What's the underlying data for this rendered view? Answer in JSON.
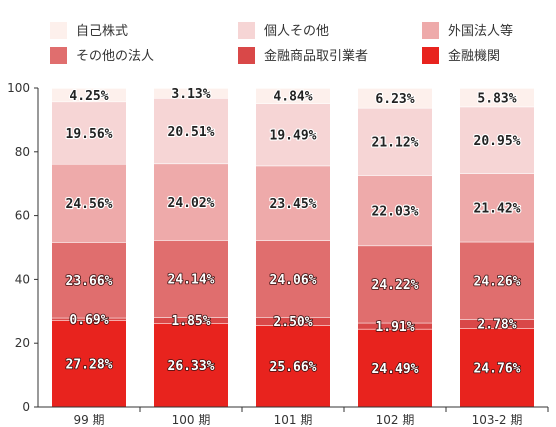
{
  "chart_data": {
    "type": "bar",
    "stacked": true,
    "categories": [
      "99 期",
      "100 期",
      "101 期",
      "102 期",
      "103-2 期"
    ],
    "series": [
      {
        "name": "金融機関",
        "color": "#e8231e",
        "values": [
          27.28,
          26.33,
          25.66,
          24.49,
          24.76
        ]
      },
      {
        "name": "金融商品取引業者",
        "color": "#d94848",
        "values": [
          0.69,
          1.85,
          2.5,
          1.91,
          2.78
        ]
      },
      {
        "name": "その他の法人",
        "color": "#e06e6e",
        "values": [
          23.66,
          24.14,
          24.06,
          24.22,
          24.26
        ]
      },
      {
        "name": "外国法人等",
        "color": "#eeaaaa",
        "values": [
          24.56,
          24.02,
          23.45,
          22.03,
          21.42
        ]
      },
      {
        "name": "個人その他",
        "color": "#f6d5d5",
        "values": [
          19.56,
          20.51,
          19.49,
          21.12,
          20.95
        ]
      },
      {
        "name": "自己株式",
        "color": "#fdf0ec",
        "values": [
          4.25,
          3.13,
          4.84,
          6.23,
          5.83
        ]
      }
    ],
    "value_labels": [
      [
        "27.28%",
        "26.33%",
        "25.66%",
        "24.49%",
        "24.76%"
      ],
      [
        "0.69%",
        "1.85%",
        "2.50%",
        "1.91%",
        "2.78%"
      ],
      [
        "23.66%",
        "24.14%",
        "24.06%",
        "24.22%",
        "24.26%"
      ],
      [
        "24.56%",
        "24.02%",
        "23.45%",
        "22.03%",
        "21.42%"
      ],
      [
        "19.56%",
        "20.51%",
        "19.49%",
        "21.12%",
        "20.95%"
      ],
      [
        "4.25%",
        "3.13%",
        "4.84%",
        "6.23%",
        "5.83%"
      ]
    ],
    "legend_order": [
      "自己株式",
      "個人その他",
      "外国法人等",
      "その他の法人",
      "金融商品取引業者",
      "金融機関"
    ],
    "ylim": [
      0,
      100
    ],
    "yticks": [
      0,
      20,
      40,
      60,
      80,
      100
    ],
    "grid": false,
    "legend_position": "top"
  }
}
